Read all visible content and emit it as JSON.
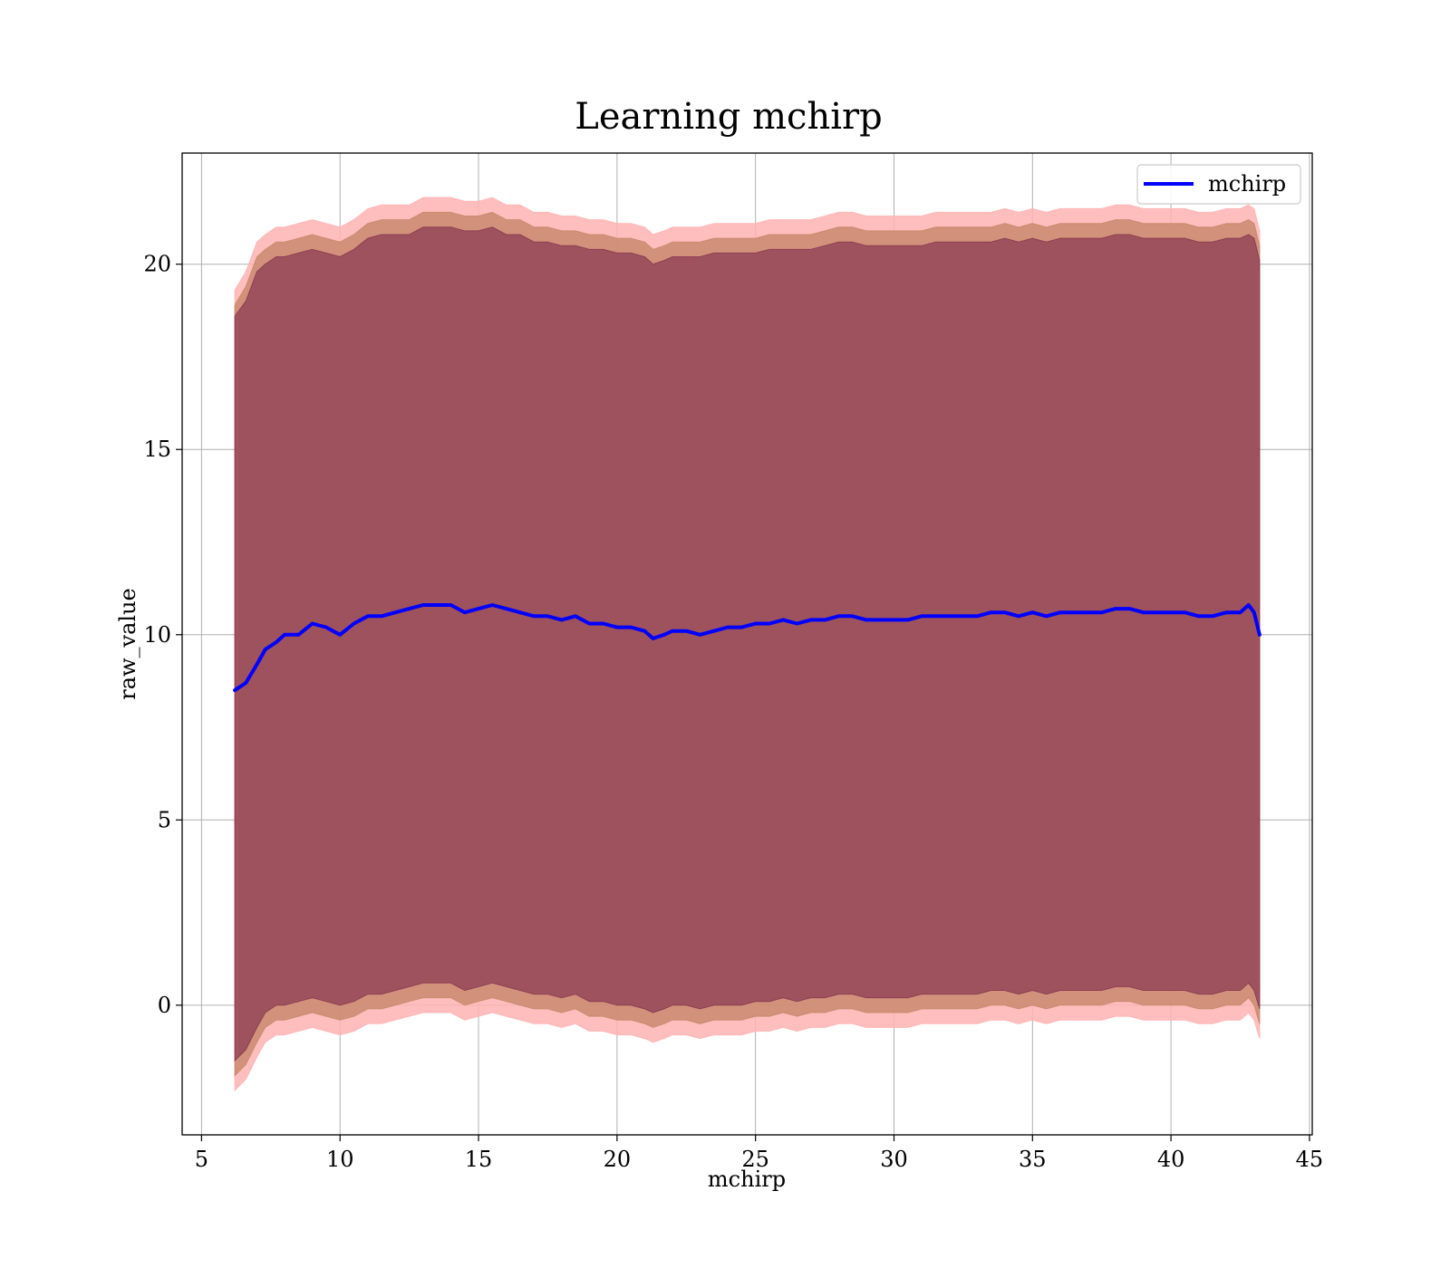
{
  "chart_data": {
    "type": "line",
    "title": "Learning mchirp",
    "xlabel": "mchirp",
    "ylabel": "raw_value",
    "xlim": [
      4.3,
      45.1
    ],
    "ylim": [
      -3.5,
      23.0
    ],
    "xticks": [
      5,
      10,
      15,
      20,
      25,
      30,
      35,
      40,
      45
    ],
    "xtick_labels": [
      "5",
      "10",
      "15",
      "20",
      "25",
      "30",
      "35",
      "40",
      "45"
    ],
    "yticks": [
      0,
      5,
      10,
      15,
      20
    ],
    "ytick_labels": [
      "0",
      "5",
      "10",
      "15",
      "20"
    ],
    "grid": true,
    "legend_position": "top-right",
    "series": [
      {
        "name": "mchirp",
        "color": "#0000ff",
        "x": [
          6.2,
          6.6,
          7.0,
          7.3,
          7.7,
          8.0,
          8.5,
          9.0,
          9.5,
          10.0,
          10.5,
          11.0,
          11.5,
          12.0,
          12.5,
          13.0,
          13.5,
          14.0,
          14.5,
          15.0,
          15.5,
          16.0,
          16.5,
          17.0,
          17.5,
          18.0,
          18.5,
          19.0,
          19.5,
          20.0,
          20.5,
          21.0,
          21.3,
          21.7,
          22.0,
          22.5,
          23.0,
          23.5,
          24.0,
          24.5,
          25.0,
          25.5,
          26.0,
          26.5,
          27.0,
          27.5,
          28.0,
          28.5,
          29.0,
          29.5,
          30.0,
          30.5,
          31.0,
          31.5,
          32.0,
          32.5,
          33.0,
          33.5,
          34.0,
          34.5,
          35.0,
          35.5,
          36.0,
          36.5,
          37.0,
          37.5,
          38.0,
          38.5,
          39.0,
          39.5,
          40.0,
          40.5,
          41.0,
          41.5,
          42.0,
          42.5,
          42.8,
          43.0,
          43.2
        ],
        "y": [
          8.5,
          8.7,
          9.2,
          9.6,
          9.8,
          10.0,
          10.0,
          10.3,
          10.2,
          10.0,
          10.3,
          10.5,
          10.5,
          10.6,
          10.7,
          10.8,
          10.8,
          10.8,
          10.6,
          10.7,
          10.8,
          10.7,
          10.6,
          10.5,
          10.5,
          10.4,
          10.5,
          10.3,
          10.3,
          10.2,
          10.2,
          10.1,
          9.9,
          10.0,
          10.1,
          10.1,
          10.0,
          10.1,
          10.2,
          10.2,
          10.3,
          10.3,
          10.4,
          10.3,
          10.4,
          10.4,
          10.5,
          10.5,
          10.4,
          10.4,
          10.4,
          10.4,
          10.5,
          10.5,
          10.5,
          10.5,
          10.5,
          10.6,
          10.6,
          10.5,
          10.6,
          10.5,
          10.6,
          10.6,
          10.6,
          10.6,
          10.7,
          10.7,
          10.6,
          10.6,
          10.6,
          10.6,
          10.5,
          10.5,
          10.6,
          10.6,
          10.8,
          10.6,
          10.0
        ],
        "band_inner": {
          "color": "#8b3a52",
          "upper": [
            18.6,
            19.0,
            19.8,
            20.0,
            20.2,
            20.2,
            20.3,
            20.4,
            20.3,
            20.2,
            20.4,
            20.7,
            20.8,
            20.8,
            20.8,
            21.0,
            21.0,
            21.0,
            20.9,
            20.9,
            21.0,
            20.8,
            20.8,
            20.6,
            20.6,
            20.5,
            20.5,
            20.4,
            20.4,
            20.3,
            20.3,
            20.2,
            20.0,
            20.1,
            20.2,
            20.2,
            20.2,
            20.3,
            20.3,
            20.3,
            20.3,
            20.4,
            20.4,
            20.4,
            20.4,
            20.5,
            20.6,
            20.6,
            20.5,
            20.5,
            20.5,
            20.5,
            20.5,
            20.6,
            20.6,
            20.6,
            20.6,
            20.6,
            20.7,
            20.6,
            20.7,
            20.6,
            20.7,
            20.7,
            20.7,
            20.7,
            20.8,
            20.8,
            20.7,
            20.7,
            20.7,
            20.7,
            20.6,
            20.6,
            20.7,
            20.7,
            20.8,
            20.7,
            20.1
          ],
          "lower": [
            -1.5,
            -1.2,
            -0.6,
            -0.2,
            0.0,
            0.0,
            0.1,
            0.2,
            0.1,
            0.0,
            0.1,
            0.3,
            0.3,
            0.4,
            0.5,
            0.6,
            0.6,
            0.6,
            0.4,
            0.5,
            0.6,
            0.5,
            0.4,
            0.3,
            0.3,
            0.2,
            0.3,
            0.1,
            0.1,
            0.0,
            0.0,
            -0.1,
            -0.2,
            -0.1,
            0.0,
            0.0,
            -0.1,
            0.0,
            0.0,
            0.0,
            0.1,
            0.1,
            0.2,
            0.1,
            0.2,
            0.2,
            0.3,
            0.3,
            0.2,
            0.2,
            0.2,
            0.2,
            0.3,
            0.3,
            0.3,
            0.3,
            0.3,
            0.4,
            0.4,
            0.3,
            0.4,
            0.3,
            0.4,
            0.4,
            0.4,
            0.4,
            0.5,
            0.5,
            0.4,
            0.4,
            0.4,
            0.4,
            0.3,
            0.3,
            0.4,
            0.4,
            0.6,
            0.4,
            -0.1
          ]
        },
        "band_middle": {
          "color": "#c98a6e",
          "upper": [
            18.9,
            19.4,
            20.2,
            20.4,
            20.6,
            20.6,
            20.7,
            20.8,
            20.7,
            20.6,
            20.8,
            21.1,
            21.2,
            21.2,
            21.2,
            21.4,
            21.4,
            21.4,
            21.3,
            21.3,
            21.4,
            21.2,
            21.2,
            21.0,
            21.0,
            20.9,
            20.9,
            20.8,
            20.8,
            20.7,
            20.7,
            20.6,
            20.4,
            20.5,
            20.6,
            20.6,
            20.6,
            20.7,
            20.7,
            20.7,
            20.7,
            20.8,
            20.8,
            20.8,
            20.8,
            20.9,
            21.0,
            21.0,
            20.9,
            20.9,
            20.9,
            20.9,
            20.9,
            21.0,
            21.0,
            21.0,
            21.0,
            21.0,
            21.1,
            21.0,
            21.1,
            21.0,
            21.1,
            21.1,
            21.1,
            21.1,
            21.2,
            21.2,
            21.1,
            21.1,
            21.1,
            21.1,
            21.0,
            21.0,
            21.1,
            21.1,
            21.2,
            21.1,
            20.5
          ],
          "lower": [
            -1.9,
            -1.6,
            -1.0,
            -0.6,
            -0.4,
            -0.4,
            -0.3,
            -0.2,
            -0.3,
            -0.4,
            -0.3,
            -0.1,
            -0.1,
            0.0,
            0.1,
            0.2,
            0.2,
            0.2,
            0.0,
            0.1,
            0.2,
            0.1,
            0.0,
            -0.1,
            -0.1,
            -0.2,
            -0.1,
            -0.3,
            -0.3,
            -0.4,
            -0.4,
            -0.5,
            -0.6,
            -0.5,
            -0.4,
            -0.4,
            -0.5,
            -0.4,
            -0.4,
            -0.4,
            -0.3,
            -0.3,
            -0.2,
            -0.3,
            -0.2,
            -0.2,
            -0.1,
            -0.1,
            -0.2,
            -0.2,
            -0.2,
            -0.2,
            -0.1,
            -0.1,
            -0.1,
            -0.1,
            -0.1,
            0.0,
            0.0,
            -0.1,
            0.0,
            -0.1,
            0.0,
            0.0,
            0.0,
            0.0,
            0.1,
            0.1,
            0.0,
            0.0,
            0.0,
            0.0,
            -0.1,
            -0.1,
            0.0,
            0.0,
            0.2,
            0.0,
            -0.5
          ]
        },
        "band_outer": {
          "color": "#ffb3b3",
          "upper": [
            19.3,
            19.8,
            20.6,
            20.8,
            21.0,
            21.0,
            21.1,
            21.2,
            21.1,
            21.0,
            21.2,
            21.5,
            21.6,
            21.6,
            21.6,
            21.8,
            21.8,
            21.8,
            21.7,
            21.7,
            21.8,
            21.6,
            21.6,
            21.4,
            21.4,
            21.3,
            21.3,
            21.2,
            21.2,
            21.1,
            21.1,
            21.0,
            20.8,
            20.9,
            21.0,
            21.0,
            21.0,
            21.1,
            21.1,
            21.1,
            21.1,
            21.2,
            21.2,
            21.2,
            21.2,
            21.3,
            21.4,
            21.4,
            21.3,
            21.3,
            21.3,
            21.3,
            21.3,
            21.4,
            21.4,
            21.4,
            21.4,
            21.4,
            21.5,
            21.4,
            21.5,
            21.4,
            21.5,
            21.5,
            21.5,
            21.5,
            21.6,
            21.6,
            21.5,
            21.5,
            21.5,
            21.5,
            21.4,
            21.4,
            21.5,
            21.5,
            21.6,
            21.5,
            20.9
          ],
          "lower": [
            -2.3,
            -2.0,
            -1.4,
            -1.0,
            -0.8,
            -0.8,
            -0.7,
            -0.6,
            -0.7,
            -0.8,
            -0.7,
            -0.5,
            -0.5,
            -0.4,
            -0.3,
            -0.2,
            -0.2,
            -0.2,
            -0.4,
            -0.3,
            -0.2,
            -0.3,
            -0.4,
            -0.5,
            -0.5,
            -0.6,
            -0.5,
            -0.7,
            -0.7,
            -0.8,
            -0.8,
            -0.9,
            -1.0,
            -0.9,
            -0.8,
            -0.8,
            -0.9,
            -0.8,
            -0.8,
            -0.8,
            -0.7,
            -0.7,
            -0.6,
            -0.7,
            -0.6,
            -0.6,
            -0.5,
            -0.5,
            -0.6,
            -0.6,
            -0.6,
            -0.6,
            -0.5,
            -0.5,
            -0.5,
            -0.5,
            -0.5,
            -0.4,
            -0.4,
            -0.5,
            -0.4,
            -0.5,
            -0.4,
            -0.4,
            -0.4,
            -0.4,
            -0.3,
            -0.3,
            -0.4,
            -0.4,
            -0.4,
            -0.4,
            -0.5,
            -0.5,
            -0.4,
            -0.4,
            -0.2,
            -0.4,
            -0.9
          ]
        }
      }
    ]
  }
}
